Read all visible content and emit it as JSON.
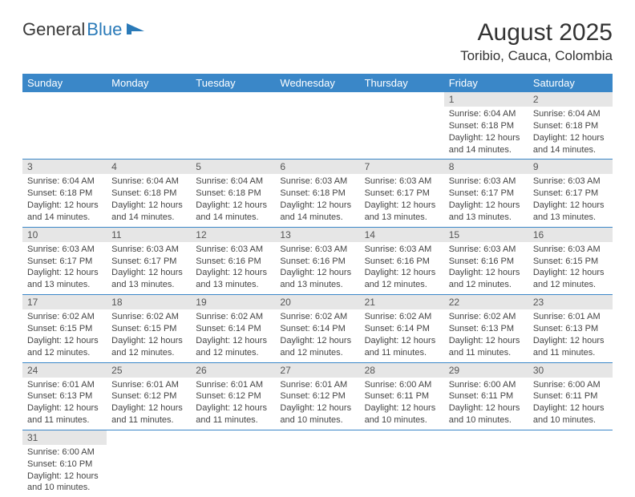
{
  "logo": {
    "text1": "General",
    "text2": "Blue"
  },
  "header": {
    "title": "August 2025",
    "location": "Toribio, Cauca, Colombia"
  },
  "dayNames": [
    "Sunday",
    "Monday",
    "Tuesday",
    "Wednesday",
    "Thursday",
    "Friday",
    "Saturday"
  ],
  "colors": {
    "headerBg": "#3a87c8",
    "dayNumBg": "#e6e6e6",
    "border": "#3a87c8"
  },
  "weeks": [
    [
      null,
      null,
      null,
      null,
      null,
      {
        "n": "1",
        "sunrise": "Sunrise: 6:04 AM",
        "sunset": "Sunset: 6:18 PM",
        "daylight": "Daylight: 12 hours and 14 minutes."
      },
      {
        "n": "2",
        "sunrise": "Sunrise: 6:04 AM",
        "sunset": "Sunset: 6:18 PM",
        "daylight": "Daylight: 12 hours and 14 minutes."
      }
    ],
    [
      {
        "n": "3",
        "sunrise": "Sunrise: 6:04 AM",
        "sunset": "Sunset: 6:18 PM",
        "daylight": "Daylight: 12 hours and 14 minutes."
      },
      {
        "n": "4",
        "sunrise": "Sunrise: 6:04 AM",
        "sunset": "Sunset: 6:18 PM",
        "daylight": "Daylight: 12 hours and 14 minutes."
      },
      {
        "n": "5",
        "sunrise": "Sunrise: 6:04 AM",
        "sunset": "Sunset: 6:18 PM",
        "daylight": "Daylight: 12 hours and 14 minutes."
      },
      {
        "n": "6",
        "sunrise": "Sunrise: 6:03 AM",
        "sunset": "Sunset: 6:18 PM",
        "daylight": "Daylight: 12 hours and 14 minutes."
      },
      {
        "n": "7",
        "sunrise": "Sunrise: 6:03 AM",
        "sunset": "Sunset: 6:17 PM",
        "daylight": "Daylight: 12 hours and 13 minutes."
      },
      {
        "n": "8",
        "sunrise": "Sunrise: 6:03 AM",
        "sunset": "Sunset: 6:17 PM",
        "daylight": "Daylight: 12 hours and 13 minutes."
      },
      {
        "n": "9",
        "sunrise": "Sunrise: 6:03 AM",
        "sunset": "Sunset: 6:17 PM",
        "daylight": "Daylight: 12 hours and 13 minutes."
      }
    ],
    [
      {
        "n": "10",
        "sunrise": "Sunrise: 6:03 AM",
        "sunset": "Sunset: 6:17 PM",
        "daylight": "Daylight: 12 hours and 13 minutes."
      },
      {
        "n": "11",
        "sunrise": "Sunrise: 6:03 AM",
        "sunset": "Sunset: 6:17 PM",
        "daylight": "Daylight: 12 hours and 13 minutes."
      },
      {
        "n": "12",
        "sunrise": "Sunrise: 6:03 AM",
        "sunset": "Sunset: 6:16 PM",
        "daylight": "Daylight: 12 hours and 13 minutes."
      },
      {
        "n": "13",
        "sunrise": "Sunrise: 6:03 AM",
        "sunset": "Sunset: 6:16 PM",
        "daylight": "Daylight: 12 hours and 13 minutes."
      },
      {
        "n": "14",
        "sunrise": "Sunrise: 6:03 AM",
        "sunset": "Sunset: 6:16 PM",
        "daylight": "Daylight: 12 hours and 12 minutes."
      },
      {
        "n": "15",
        "sunrise": "Sunrise: 6:03 AM",
        "sunset": "Sunset: 6:16 PM",
        "daylight": "Daylight: 12 hours and 12 minutes."
      },
      {
        "n": "16",
        "sunrise": "Sunrise: 6:03 AM",
        "sunset": "Sunset: 6:15 PM",
        "daylight": "Daylight: 12 hours and 12 minutes."
      }
    ],
    [
      {
        "n": "17",
        "sunrise": "Sunrise: 6:02 AM",
        "sunset": "Sunset: 6:15 PM",
        "daylight": "Daylight: 12 hours and 12 minutes."
      },
      {
        "n": "18",
        "sunrise": "Sunrise: 6:02 AM",
        "sunset": "Sunset: 6:15 PM",
        "daylight": "Daylight: 12 hours and 12 minutes."
      },
      {
        "n": "19",
        "sunrise": "Sunrise: 6:02 AM",
        "sunset": "Sunset: 6:14 PM",
        "daylight": "Daylight: 12 hours and 12 minutes."
      },
      {
        "n": "20",
        "sunrise": "Sunrise: 6:02 AM",
        "sunset": "Sunset: 6:14 PM",
        "daylight": "Daylight: 12 hours and 12 minutes."
      },
      {
        "n": "21",
        "sunrise": "Sunrise: 6:02 AM",
        "sunset": "Sunset: 6:14 PM",
        "daylight": "Daylight: 12 hours and 11 minutes."
      },
      {
        "n": "22",
        "sunrise": "Sunrise: 6:02 AM",
        "sunset": "Sunset: 6:13 PM",
        "daylight": "Daylight: 12 hours and 11 minutes."
      },
      {
        "n": "23",
        "sunrise": "Sunrise: 6:01 AM",
        "sunset": "Sunset: 6:13 PM",
        "daylight": "Daylight: 12 hours and 11 minutes."
      }
    ],
    [
      {
        "n": "24",
        "sunrise": "Sunrise: 6:01 AM",
        "sunset": "Sunset: 6:13 PM",
        "daylight": "Daylight: 12 hours and 11 minutes."
      },
      {
        "n": "25",
        "sunrise": "Sunrise: 6:01 AM",
        "sunset": "Sunset: 6:12 PM",
        "daylight": "Daylight: 12 hours and 11 minutes."
      },
      {
        "n": "26",
        "sunrise": "Sunrise: 6:01 AM",
        "sunset": "Sunset: 6:12 PM",
        "daylight": "Daylight: 12 hours and 11 minutes."
      },
      {
        "n": "27",
        "sunrise": "Sunrise: 6:01 AM",
        "sunset": "Sunset: 6:12 PM",
        "daylight": "Daylight: 12 hours and 10 minutes."
      },
      {
        "n": "28",
        "sunrise": "Sunrise: 6:00 AM",
        "sunset": "Sunset: 6:11 PM",
        "daylight": "Daylight: 12 hours and 10 minutes."
      },
      {
        "n": "29",
        "sunrise": "Sunrise: 6:00 AM",
        "sunset": "Sunset: 6:11 PM",
        "daylight": "Daylight: 12 hours and 10 minutes."
      },
      {
        "n": "30",
        "sunrise": "Sunrise: 6:00 AM",
        "sunset": "Sunset: 6:11 PM",
        "daylight": "Daylight: 12 hours and 10 minutes."
      }
    ],
    [
      {
        "n": "31",
        "sunrise": "Sunrise: 6:00 AM",
        "sunset": "Sunset: 6:10 PM",
        "daylight": "Daylight: 12 hours and 10 minutes."
      },
      null,
      null,
      null,
      null,
      null,
      null
    ]
  ]
}
